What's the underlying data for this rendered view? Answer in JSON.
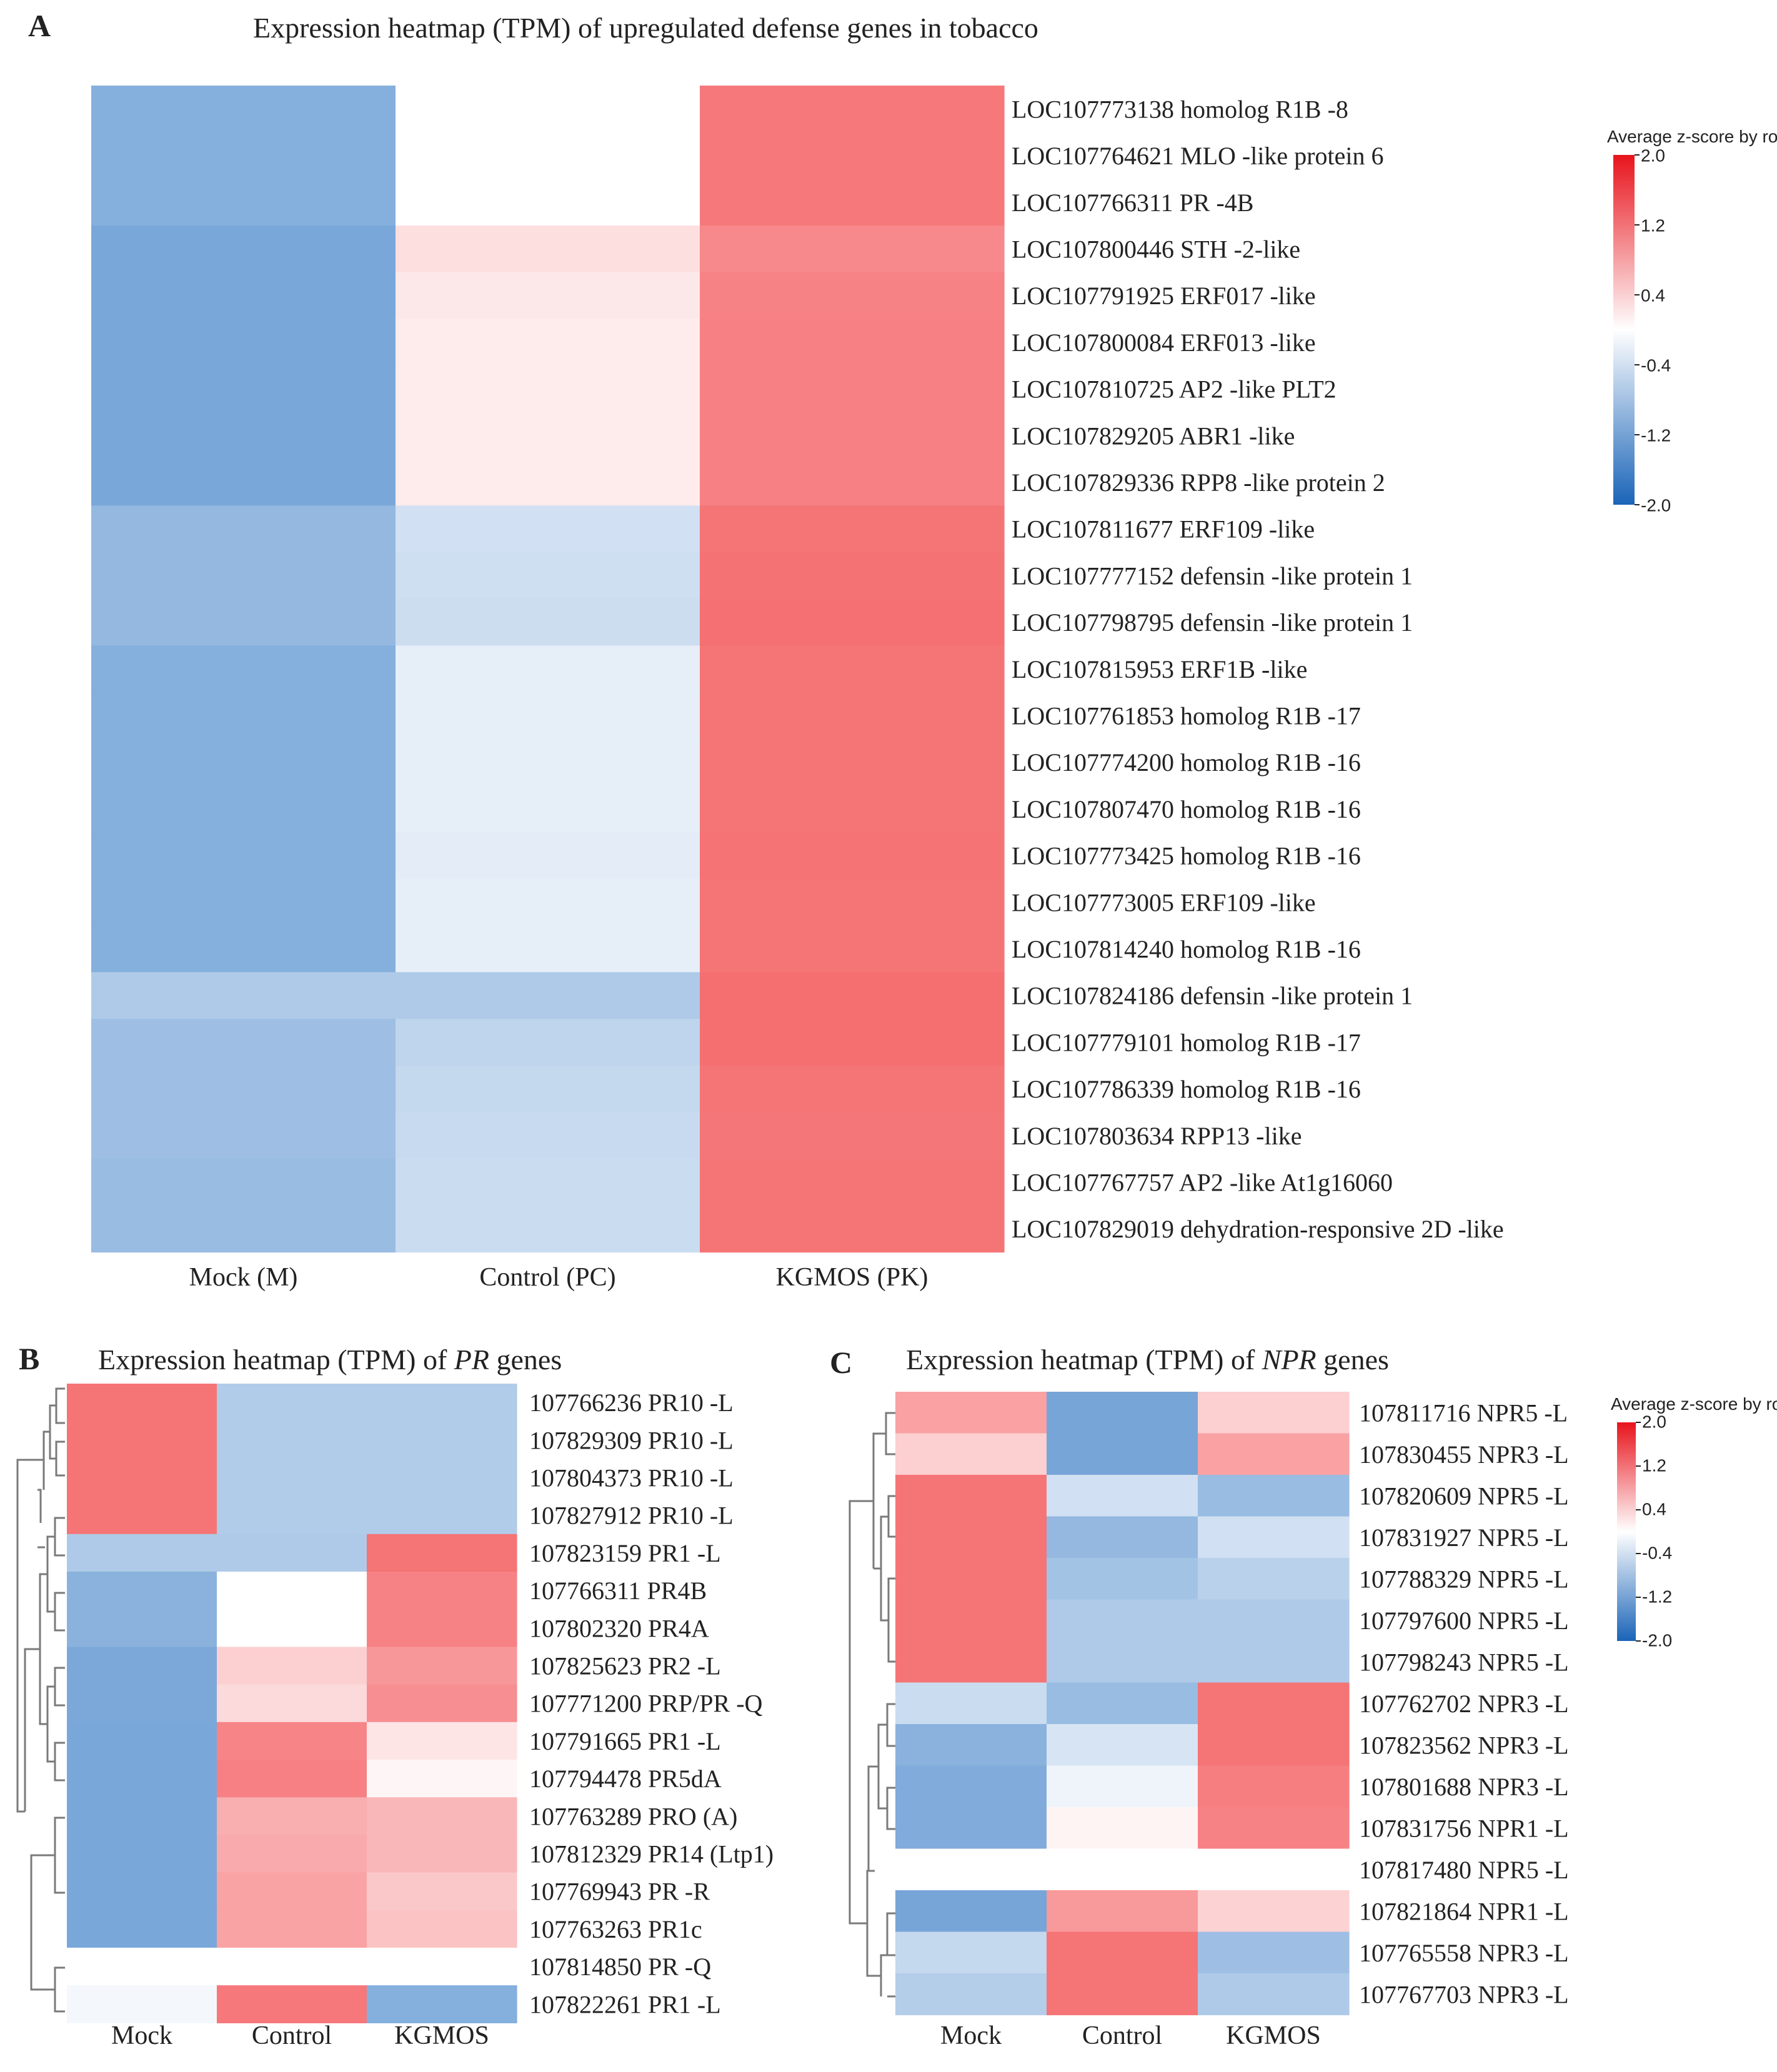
{
  "chart_data": [
    {
      "panel": "A",
      "type": "heatmap",
      "title": "Expression heatmap (TPM) of upregulated defense genes in tobacco",
      "columns": [
        "Mock (M)",
        "Control (PC)",
        "KGMOS (PK)"
      ],
      "rows": [
        "LOC107773138 homolog R1B -8",
        "LOC107764621 MLO -like protein 6",
        "LOC107766311 PR -4B",
        "LOC107800446 STH -2-like",
        "LOC107791925 ERF017 -like",
        "LOC107800084 ERF013 -like",
        "LOC107810725 AP2 -like PLT2",
        "LOC107829205 ABR1 -like",
        "LOC107829336 RPP8 -like protein 2",
        "LOC107811677 ERF109 -like",
        "LOC107777152 defensin -like protein 1",
        "LOC107798795 defensin -like protein 1",
        "LOC107815953 ERF1B -like",
        "LOC107761853 homolog R1B -17",
        "LOC107774200 homolog R1B -16",
        "LOC107807470 homolog R1B -16",
        "LOC107773425 homolog R1B -16",
        "LOC107773005 ERF109 -like",
        "LOC107814240 homolog R1B -16",
        "LOC107824186 defensin -like protein 1",
        "LOC107779101 homolog R1B -17",
        "LOC107786339 homolog R1B -16",
        "LOC107803634 RPP13 -like",
        "LOC107767757 AP2 -like At1g16060",
        "LOC107829019 dehydration-responsive 2D -like"
      ],
      "values": [
        [
          -1.0,
          0.0,
          1.1
        ],
        [
          -1.0,
          0.0,
          1.1
        ],
        [
          -1.0,
          0.0,
          1.1
        ],
        [
          -1.12,
          0.18,
          0.94
        ],
        [
          -1.12,
          0.12,
          1.0
        ],
        [
          -1.12,
          0.1,
          1.02
        ],
        [
          -1.12,
          0.1,
          1.02
        ],
        [
          -1.12,
          0.1,
          1.02
        ],
        [
          -1.12,
          0.1,
          1.02
        ],
        [
          -0.85,
          -0.3,
          1.15
        ],
        [
          -0.85,
          -0.32,
          1.17
        ],
        [
          -0.85,
          -0.34,
          1.19
        ],
        [
          -1.0,
          -0.14,
          1.14
        ],
        [
          -1.0,
          -0.14,
          1.14
        ],
        [
          -1.0,
          -0.14,
          1.14
        ],
        [
          -1.0,
          -0.14,
          1.14
        ],
        [
          -1.0,
          -0.16,
          1.16
        ],
        [
          -1.0,
          -0.14,
          1.14
        ],
        [
          -1.0,
          -0.14,
          1.14
        ],
        [
          -0.6,
          -0.6,
          1.2
        ],
        [
          -0.75,
          -0.45,
          1.2
        ],
        [
          -0.75,
          -0.4,
          1.15
        ],
        [
          -0.75,
          -0.38,
          1.13
        ],
        [
          -0.8,
          -0.35,
          1.15
        ],
        [
          -0.8,
          -0.35,
          1.15
        ]
      ],
      "legend": {
        "title": "Average z-score by row",
        "ticks": [
          "2.0",
          "1.2",
          "0.4",
          "-0.4",
          "-1.2",
          "-2.0"
        ],
        "range": [
          -2.0,
          2.0
        ]
      },
      "colors": {
        "low": "#2b73c2",
        "mid": "#ffffff",
        "high": "#f0262a"
      }
    },
    {
      "panel": "B",
      "type": "heatmap",
      "title_prefix": "Expression heatmap (TPM) of ",
      "title_italic": "PR",
      "title_suffix": " genes",
      "columns": [
        "Mock",
        "Control",
        "KGMOS"
      ],
      "rows": [
        "107766236 PR10 -L",
        "107829309 PR10 -L",
        "107804373 PR10 -L",
        "107827912 PR10 -L",
        "107823159 PR1 -L",
        "107766311 PR4B",
        "107802320 PR4A",
        "107825623 PR2 -L",
        "107771200 PRP/PR -Q",
        "107791665 PR1 -L",
        "107794478 PR5dA",
        "107763289 PRO (A)",
        "107812329 PR14 (Ltp1)",
        "107769943 PR -R",
        "107763263 PR1c",
        "107814850 PR -Q",
        "107822261 PR1 -L"
      ],
      "values": [
        [
          1.15,
          -0.57,
          -0.57
        ],
        [
          1.15,
          -0.57,
          -0.57
        ],
        [
          1.15,
          -0.57,
          -0.57
        ],
        [
          1.15,
          -0.57,
          -0.57
        ],
        [
          -0.6,
          -0.6,
          1.15
        ],
        [
          -0.95,
          0.0,
          1.0
        ],
        [
          -0.95,
          0.0,
          1.0
        ],
        [
          -1.1,
          0.3,
          0.8
        ],
        [
          -1.1,
          0.22,
          0.88
        ],
        [
          -1.12,
          0.98,
          0.14
        ],
        [
          -1.12,
          1.02,
          0.04
        ],
        [
          -1.12,
          0.58,
          0.5
        ],
        [
          -1.12,
          0.62,
          0.5
        ],
        [
          -1.12,
          0.68,
          0.36
        ],
        [
          -1.12,
          0.68,
          0.4
        ],
        [
          0.0,
          0.0,
          0.0
        ],
        [
          -0.05,
          1.1,
          -1.0
        ]
      ],
      "legend": null
    },
    {
      "panel": "C",
      "type": "heatmap",
      "title_prefix": "Expression heatmap (TPM) of ",
      "title_italic": "NPR",
      "title_suffix": " genes",
      "columns": [
        "Mock",
        "Control",
        "KGMOS"
      ],
      "rows": [
        "107811716 NPR5 -L",
        "107830455 NPR3 -L",
        "107820609 NPR5 -L",
        "107831927 NPR5 -L",
        "107788329 NPR5 -L",
        "107797600 NPR5 -L",
        "107798243 NPR5 -L",
        "107762702 NPR3 -L",
        "107823562 NPR3 -L",
        "107801688 NPR3 -L",
        "107831756 NPR1 -L",
        "107817480 NPR5 -L",
        "107821864 NPR1 -L",
        "107765558 NPR3 -L",
        "107767703 NPR3 -L"
      ],
      "values": [
        [
          0.7,
          -1.15,
          0.3
        ],
        [
          0.3,
          -1.15,
          0.7
        ],
        [
          1.15,
          -0.3,
          -0.8
        ],
        [
          1.15,
          -0.85,
          -0.3
        ],
        [
          1.15,
          -0.7,
          -0.5
        ],
        [
          1.15,
          -0.6,
          -0.6
        ],
        [
          1.15,
          -0.6,
          -0.6
        ],
        [
          -0.35,
          -0.8,
          1.15
        ],
        [
          -0.95,
          -0.25,
          1.15
        ],
        [
          -1.05,
          -0.08,
          1.05
        ],
        [
          -1.05,
          0.05,
          1.0
        ],
        [
          0.0,
          0.0,
          0.0
        ],
        [
          -1.15,
          0.78,
          0.28
        ],
        [
          -0.4,
          1.15,
          -0.75
        ],
        [
          -0.55,
          1.15,
          -0.6
        ]
      ],
      "legend": {
        "title": "Average z-score by row",
        "ticks": [
          "2.0",
          "1.2",
          "0.4",
          "-0.4",
          "-1.2",
          "-2.0"
        ],
        "range": [
          -2.0,
          2.0
        ]
      }
    }
  ]
}
